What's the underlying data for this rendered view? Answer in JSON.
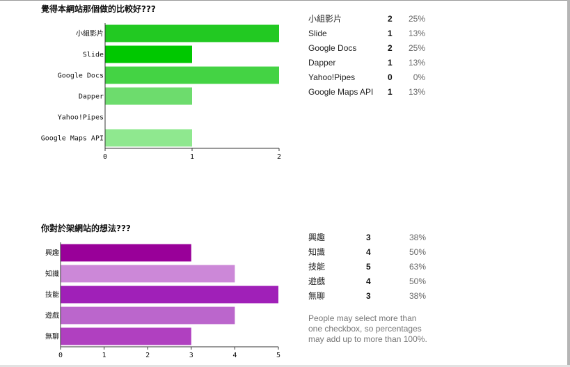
{
  "questions": [
    {
      "title": "覺得本網站那個做的比較好???",
      "chart_data": {
        "type": "bar",
        "orientation": "horizontal",
        "categories": [
          "小組影片",
          "Slide",
          "Google Docs",
          "Dapper",
          "Yahoo!Pipes",
          "Google Maps API"
        ],
        "values": [
          2,
          1,
          2,
          1,
          0,
          1
        ],
        "xlim": [
          0,
          2
        ],
        "xticks": [
          0,
          1,
          2
        ],
        "colors": [
          "#22c922",
          "#00c800",
          "#44d344",
          "#6ddc6d",
          "#99e699",
          "#8fe88f"
        ],
        "grid": false
      },
      "summary": [
        {
          "label": "小組影片",
          "count": "2",
          "percent": "25%"
        },
        {
          "label": "Slide",
          "count": "1",
          "percent": "13%"
        },
        {
          "label": "Google Docs",
          "count": "2",
          "percent": "25%"
        },
        {
          "label": "Dapper",
          "count": "1",
          "percent": "13%"
        },
        {
          "label": "Yahoo!Pipes",
          "count": "0",
          "percent": "0%"
        },
        {
          "label": "Google Maps API",
          "count": "1",
          "percent": "13%"
        }
      ]
    },
    {
      "title": "你對於架網站的想法???",
      "chart_data": {
        "type": "bar",
        "orientation": "horizontal",
        "categories": [
          "興趣",
          "知識",
          "技能",
          "遊戲",
          "無聊"
        ],
        "values": [
          3,
          4,
          5,
          4,
          3
        ],
        "xlim": [
          0,
          5
        ],
        "xticks": [
          0,
          1,
          2,
          3,
          4,
          5
        ],
        "colors": [
          "#990099",
          "#cc88d8",
          "#a020b8",
          "#bb66cc",
          "#b040c0"
        ],
        "grid": false
      },
      "summary": [
        {
          "label": "興趣",
          "count": "3",
          "percent": "38%"
        },
        {
          "label": "知識",
          "count": "4",
          "percent": "50%"
        },
        {
          "label": "技能",
          "count": "5",
          "percent": "63%"
        },
        {
          "label": "遊戲",
          "count": "4",
          "percent": "50%"
        },
        {
          "label": "無聊",
          "count": "3",
          "percent": "38%"
        }
      ],
      "note": "People may select more than one checkbox, so percentages may add up to more than 100%."
    }
  ]
}
